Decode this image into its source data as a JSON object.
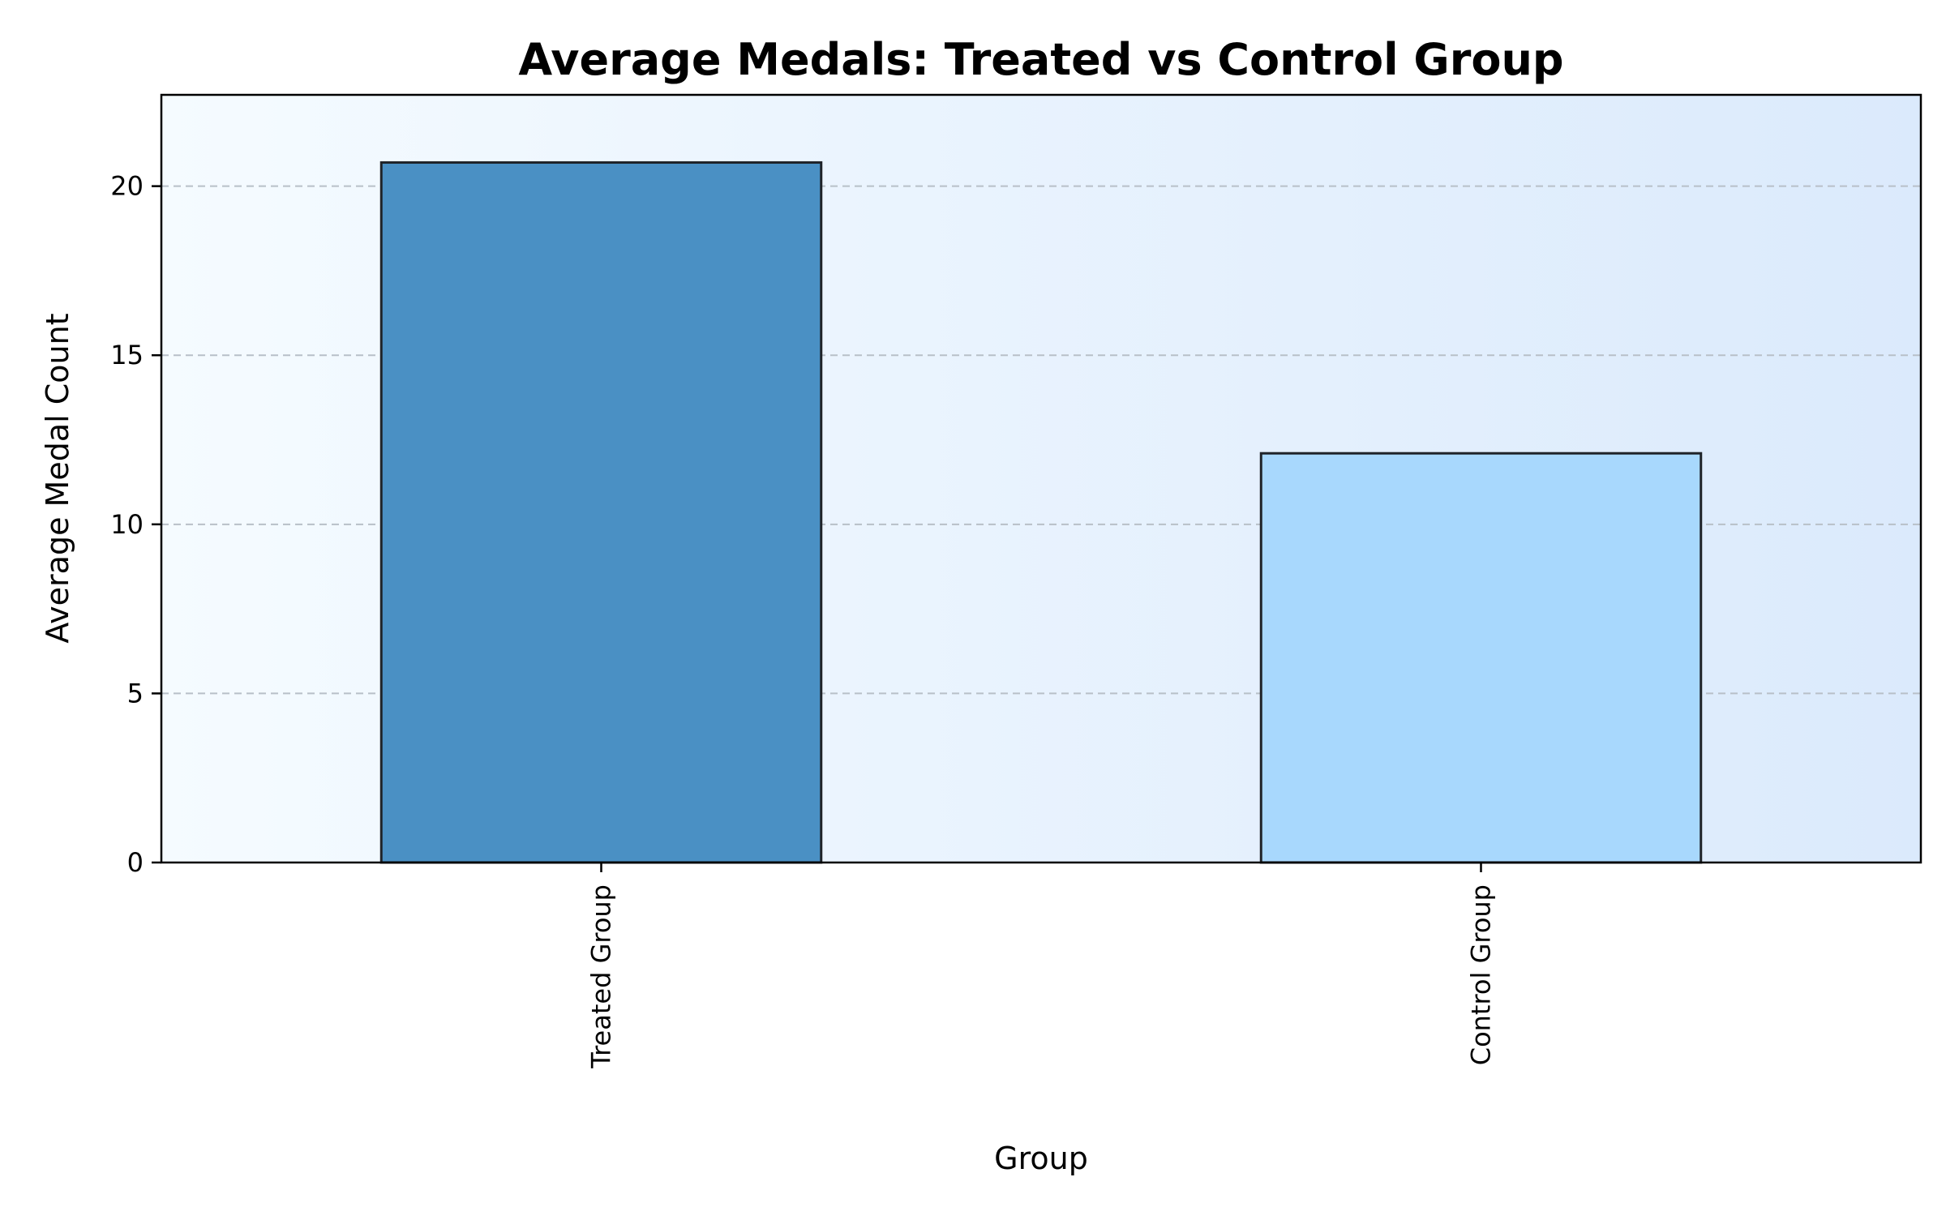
{
  "chart_data": {
    "type": "bar",
    "title": "Average Medals: Treated vs Control Group",
    "xlabel": "Group",
    "ylabel": "Average Medal Count",
    "categories": [
      "Treated Group",
      "Control Group"
    ],
    "values": [
      20.7,
      12.1
    ],
    "bar_colors": [
      "#4a90c4",
      "#a8d8fd"
    ],
    "ylim": [
      0,
      22.7
    ],
    "yticks": [
      0,
      5,
      10,
      15,
      20
    ],
    "grid": "y-dashed",
    "background_gradient": [
      "#f5fbff",
      "#dbeafc"
    ],
    "legend": "none"
  }
}
